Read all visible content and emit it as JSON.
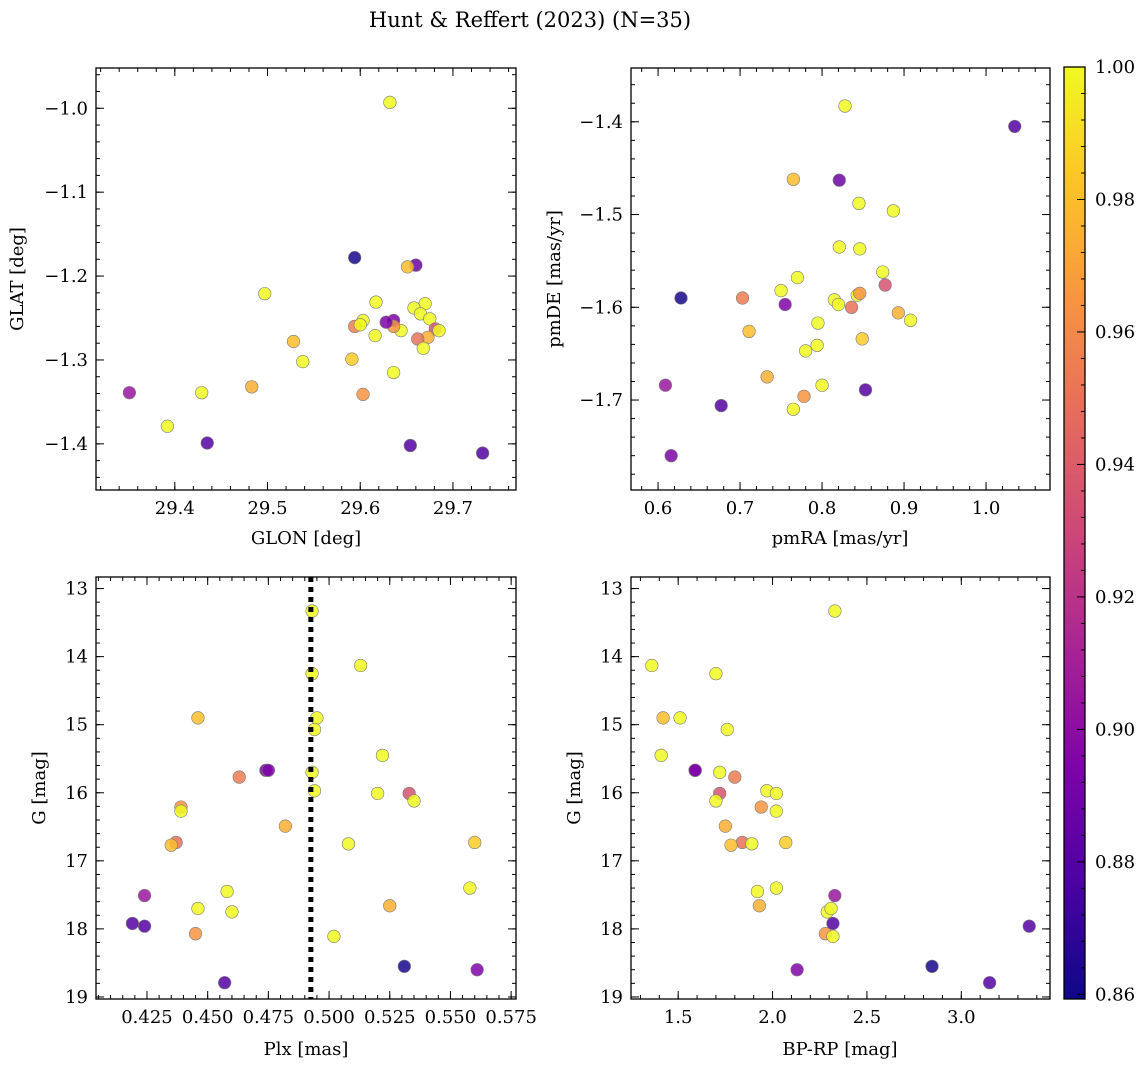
{
  "figure_title": "Hunt & Reffert (2023) (N=35)",
  "colorbar": {
    "cmap": "plasma",
    "vmin": 0.8593,
    "vmax": 1.0,
    "ticks": [
      0.86,
      0.88,
      0.9,
      0.92,
      0.94,
      0.96,
      0.98,
      1.0
    ],
    "tick_labels": [
      "0.86",
      "0.88",
      "0.90",
      "0.92",
      "0.94",
      "0.96",
      "0.98",
      "1.00"
    ]
  },
  "stars": [
    {
      "glon": 29.632,
      "glat": -0.993,
      "pmra": 0.828,
      "pmde": -1.383,
      "plx": 0.46,
      "g": 17.75,
      "bprp": 2.29,
      "p": 1.0
    },
    {
      "glon": 29.594,
      "glat": -1.178,
      "pmra": 0.628,
      "pmde": -1.59,
      "plx": 0.531,
      "g": 18.55,
      "bprp": 2.845,
      "p": 0.862
    },
    {
      "glon": 29.66,
      "glat": -1.187,
      "pmra": 0.821,
      "pmde": -1.463,
      "plx": 0.474,
      "g": 15.67,
      "bprp": 1.59,
      "p": 0.888
    },
    {
      "glon": 29.651,
      "glat": -1.189,
      "pmra": 0.765,
      "pmde": -1.462,
      "plx": 0.446,
      "g": 14.9,
      "bprp": 1.42,
      "p": 0.98
    },
    {
      "glon": 29.497,
      "glat": -1.221,
      "pmra": 0.887,
      "pmde": -1.496,
      "plx": 0.513,
      "g": 14.13,
      "bprp": 1.36,
      "p": 1.0
    },
    {
      "glon": 29.617,
      "glat": -1.231,
      "pmra": 0.845,
      "pmde": -1.488,
      "plx": 0.493,
      "g": 13.33,
      "bprp": 2.33,
      "p": 1.0
    },
    {
      "glon": 29.67,
      "glat": -1.233,
      "pmra": 0.821,
      "pmde": -1.535,
      "plx": 0.493,
      "g": 14.25,
      "bprp": 1.7,
      "p": 1.0
    },
    {
      "glon": 29.658,
      "glat": -1.238,
      "pmra": 0.846,
      "pmde": -1.537,
      "plx": 0.495,
      "g": 14.9,
      "bprp": 1.51,
      "p": 1.0
    },
    {
      "glon": 29.665,
      "glat": -1.245,
      "pmra": 0.77,
      "pmde": -1.568,
      "plx": 0.494,
      "g": 15.07,
      "bprp": 1.76,
      "p": 1.0
    },
    {
      "glon": 29.675,
      "glat": -1.251,
      "pmra": 0.874,
      "pmde": -1.562,
      "plx": 0.522,
      "g": 15.45,
      "bprp": 1.41,
      "p": 1.0
    },
    {
      "glon": 29.636,
      "glat": -1.253,
      "pmra": 0.755,
      "pmde": -1.597,
      "plx": 0.475,
      "g": 15.67,
      "bprp": 1.59,
      "p": 0.895
    },
    {
      "glon": 29.603,
      "glat": -1.253,
      "pmra": 0.75,
      "pmde": -1.582,
      "plx": 0.493,
      "g": 15.7,
      "bprp": 1.72,
      "p": 1.0
    },
    {
      "glon": 29.594,
      "glat": -1.26,
      "pmra": 0.703,
      "pmde": -1.59,
      "plx": 0.463,
      "g": 15.77,
      "bprp": 1.8,
      "p": 0.955
    },
    {
      "glon": 29.6,
      "glat": -1.258,
      "pmra": 0.815,
      "pmde": -1.592,
      "plx": 0.494,
      "g": 15.97,
      "bprp": 1.97,
      "p": 1.0
    },
    {
      "glon": 29.644,
      "glat": -1.265,
      "pmra": 0.843,
      "pmde": -1.587,
      "plx": 0.52,
      "g": 16.01,
      "bprp": 2.02,
      "p": 1.0
    },
    {
      "glon": 29.681,
      "glat": -1.263,
      "pmra": 0.877,
      "pmde": -1.576,
      "plx": 0.533,
      "g": 16.01,
      "bprp": 1.72,
      "p": 0.935
    },
    {
      "glon": 29.685,
      "glat": -1.265,
      "pmra": 0.82,
      "pmde": -1.597,
      "plx": 0.535,
      "g": 16.12,
      "bprp": 1.7,
      "p": 1.0
    },
    {
      "glon": 29.636,
      "glat": -1.26,
      "pmra": 0.846,
      "pmde": -1.585,
      "plx": 0.439,
      "g": 16.21,
      "bprp": 1.94,
      "p": 0.965
    },
    {
      "glon": 29.616,
      "glat": -1.271,
      "pmra": 0.908,
      "pmde": -1.614,
      "plx": 0.439,
      "g": 16.27,
      "bprp": 2.02,
      "p": 1.0
    },
    {
      "glon": 29.673,
      "glat": -1.273,
      "pmra": 0.893,
      "pmde": -1.606,
      "plx": 0.482,
      "g": 16.49,
      "bprp": 1.75,
      "p": 0.975
    },
    {
      "glon": 29.662,
      "glat": -1.275,
      "pmra": 0.836,
      "pmde": -1.6,
      "plx": 0.437,
      "g": 16.73,
      "bprp": 1.84,
      "p": 0.95
    },
    {
      "glon": 29.668,
      "glat": -1.286,
      "pmra": 0.795,
      "pmde": -1.617,
      "plx": 0.508,
      "g": 16.75,
      "bprp": 1.89,
      "p": 1.0
    },
    {
      "glon": 29.528,
      "glat": -1.278,
      "pmra": 0.711,
      "pmde": -1.626,
      "plx": 0.435,
      "g": 16.77,
      "bprp": 1.78,
      "p": 0.98
    },
    {
      "glon": 29.591,
      "glat": -1.299,
      "pmra": 0.849,
      "pmde": -1.634,
      "plx": 0.56,
      "g": 16.73,
      "bprp": 2.07,
      "p": 0.985
    },
    {
      "glon": 29.538,
      "glat": -1.302,
      "pmra": 0.794,
      "pmde": -1.641,
      "plx": 0.558,
      "g": 17.4,
      "bprp": 2.02,
      "p": 1.0
    },
    {
      "glon": 29.636,
      "glat": -1.315,
      "pmra": 0.78,
      "pmde": -1.647,
      "plx": 0.458,
      "g": 17.45,
      "bprp": 1.92,
      "p": 1.0
    },
    {
      "glon": 29.483,
      "glat": -1.332,
      "pmra": 0.733,
      "pmde": -1.675,
      "plx": 0.525,
      "g": 17.66,
      "bprp": 1.93,
      "p": 0.975
    },
    {
      "glon": 29.429,
      "glat": -1.339,
      "pmra": 0.8,
      "pmde": -1.684,
      "plx": 0.446,
      "g": 17.7,
      "bprp": 2.31,
      "p": 1.0
    },
    {
      "glon": 29.351,
      "glat": -1.339,
      "pmra": 0.609,
      "pmde": -1.684,
      "plx": 0.424,
      "g": 17.51,
      "bprp": 2.33,
      "p": 0.905
    },
    {
      "glon": 29.603,
      "glat": -1.341,
      "pmra": 0.778,
      "pmde": -1.696,
      "plx": 0.445,
      "g": 18.07,
      "bprp": 2.28,
      "p": 0.965
    },
    {
      "glon": 29.435,
      "glat": -1.399,
      "pmra": 0.853,
      "pmde": -1.689,
      "plx": 0.424,
      "g": 17.96,
      "bprp": 3.36,
      "p": 0.88
    },
    {
      "glon": 29.654,
      "glat": -1.402,
      "pmra": 0.677,
      "pmde": -1.706,
      "plx": 0.419,
      "g": 17.92,
      "bprp": 2.32,
      "p": 0.88
    },
    {
      "glon": 29.392,
      "glat": -1.379,
      "pmra": 0.765,
      "pmde": -1.71,
      "plx": 0.502,
      "g": 18.11,
      "bprp": 2.32,
      "p": 1.0
    },
    {
      "glon": 29.732,
      "glat": -1.411,
      "pmra": 1.035,
      "pmde": -1.405,
      "plx": 0.457,
      "g": 18.79,
      "bprp": 3.15,
      "p": 0.88
    },
    {
      "glon": 29.628,
      "glat": -1.255,
      "pmra": 0.616,
      "pmde": -1.76,
      "plx": 0.561,
      "g": 18.6,
      "bprp": 2.13,
      "p": 0.895
    }
  ],
  "chart_data": [
    {
      "type": "scatter",
      "id": "sky",
      "title": "",
      "xlabel": "GLON [deg]",
      "ylabel": "GLAT [deg]",
      "x_field": "glon",
      "y_field": "glat",
      "xlim": [
        29.315,
        29.768
      ],
      "ylim": [
        -1.455,
        -0.952
      ],
      "y_inverted": false,
      "xticks": [
        29.4,
        29.5,
        29.6,
        29.7
      ],
      "xtick_labels": [
        "29.4",
        "29.5",
        "29.6",
        "29.7"
      ],
      "xminor": 0.02,
      "yticks": [
        -1.4,
        -1.3,
        -1.2,
        -1.1,
        -1.0
      ],
      "ytick_labels": [
        "−1.4",
        "−1.3",
        "−1.2",
        "−1.1",
        "−1.0"
      ],
      "yminor": 0.02
    },
    {
      "type": "scatter",
      "id": "pm",
      "title": "",
      "xlabel": "pmRA [mas/yr]",
      "ylabel": "pmDE [mas/yr]",
      "x_field": "pmra",
      "y_field": "pmde",
      "xlim": [
        0.567,
        1.078
      ],
      "ylim": [
        -1.797,
        -1.342
      ],
      "y_inverted": false,
      "xticks": [
        0.6,
        0.7,
        0.8,
        0.9,
        1.0
      ],
      "xtick_labels": [
        "0.6",
        "0.7",
        "0.8",
        "0.9",
        "1.0"
      ],
      "xminor": 0.02,
      "yticks": [
        -1.7,
        -1.6,
        -1.5,
        -1.4
      ],
      "ytick_labels": [
        "−1.7",
        "−1.6",
        "−1.5",
        "−1.4"
      ],
      "yminor": 0.02
    },
    {
      "type": "scatter",
      "id": "plx",
      "title": "",
      "xlabel": "Plx [mas]",
      "ylabel": "G [mag]",
      "x_field": "plx",
      "y_field": "g",
      "xlim": [
        0.404,
        0.577
      ],
      "ylim": [
        19.03,
        12.83
      ],
      "y_inverted": true,
      "xticks": [
        0.425,
        0.45,
        0.475,
        0.5,
        0.525,
        0.55,
        0.575
      ],
      "xtick_labels": [
        "0.425",
        "0.450",
        "0.475",
        "0.500",
        "0.525",
        "0.550",
        "0.575"
      ],
      "xminor": 0.005,
      "yticks": [
        13,
        14,
        15,
        16,
        17,
        18,
        19
      ],
      "ytick_labels": [
        "13",
        "14",
        "15",
        "16",
        "17",
        "18",
        "19"
      ],
      "yminor": 0.2,
      "vline": {
        "x": 0.4925,
        "style": "dotted",
        "color": "#000000"
      }
    },
    {
      "type": "scatter",
      "id": "cmd",
      "title": "",
      "xlabel": "BP-RP [mag]",
      "ylabel": "G [mag]",
      "x_field": "bprp",
      "y_field": "g",
      "xlim": [
        1.25,
        3.47
      ],
      "ylim": [
        19.03,
        12.83
      ],
      "y_inverted": true,
      "xticks": [
        1.5,
        2.0,
        2.5,
        3.0
      ],
      "xtick_labels": [
        "1.5",
        "2.0",
        "2.5",
        "3.0"
      ],
      "xminor": 0.1,
      "yticks": [
        13,
        14,
        15,
        16,
        17,
        18,
        19
      ],
      "ytick_labels": [
        "13",
        "14",
        "15",
        "16",
        "17",
        "18",
        "19"
      ],
      "yminor": 0.2
    }
  ]
}
